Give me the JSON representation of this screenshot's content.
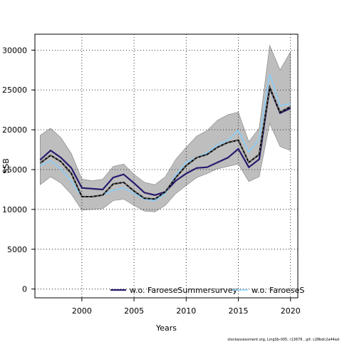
{
  "chart_data": {
    "type": "line",
    "xlabel": "Years",
    "ylabel": "SSB",
    "xlim": [
      1995.5,
      2020.7
    ],
    "ylim": [
      -1100,
      32000
    ],
    "xticks": [
      2000,
      2005,
      2010,
      2015,
      2020
    ],
    "yticks": [
      0,
      5000,
      10000,
      15000,
      20000,
      25000,
      30000
    ],
    "grid": true,
    "legend_position": "bottom",
    "x": [
      1996,
      1997,
      1998,
      1999,
      2000,
      2001,
      2002,
      2003,
      2004,
      2005,
      2006,
      2007,
      2008,
      2009,
      2010,
      2011,
      2012,
      2013,
      2014,
      2015,
      2016,
      2017,
      2018,
      2019,
      2020
    ],
    "band": {
      "upper": [
        19300,
        20200,
        19000,
        17000,
        13800,
        13600,
        13800,
        15400,
        15700,
        14400,
        13400,
        13100,
        14100,
        16300,
        17800,
        19200,
        19900,
        21200,
        21900,
        22200,
        18500,
        20200,
        30600,
        27500,
        29800
      ],
      "lower": [
        13100,
        14100,
        13300,
        11900,
        9900,
        10000,
        10100,
        11100,
        11300,
        10500,
        9800,
        9700,
        10500,
        12000,
        13000,
        14000,
        14500,
        15100,
        15400,
        15700,
        13500,
        14100,
        20800,
        17900,
        17400
      ]
    },
    "base_estimate": [
      15800,
      16800,
      16000,
      14500,
      11600,
      11600,
      11800,
      13200,
      13400,
      12300,
      11400,
      11300,
      12200,
      14000,
      15500,
      16500,
      16900,
      17800,
      18400,
      18700,
      15900,
      16900,
      25300,
      22200,
      22900
    ],
    "series": [
      {
        "name": "w.o. FaroeseSummersurvey",
        "color": "#2a1a6e",
        "values": [
          16200,
          17400,
          16500,
          15200,
          12700,
          12600,
          12500,
          14000,
          14400,
          13300,
          12100,
          11800,
          12200,
          13600,
          14500,
          15200,
          15300,
          15900,
          16500,
          17600,
          15300,
          16300,
          25300,
          22100,
          22700
        ]
      },
      {
        "name": "w.o. FaroeseS",
        "color": "#87cefa",
        "values": [
          15500,
          16100,
          15100,
          13500,
          11600,
          11600,
          11800,
          12400,
          12700,
          12000,
          11300,
          11100,
          12000,
          14300,
          15900,
          16500,
          17100,
          18100,
          18700,
          19900,
          17200,
          18800,
          27000,
          23000,
          23300
        ]
      }
    ]
  },
  "footer": "stockassessment.org, LingSb-005, r13676 , git: c28bdc2a44ad"
}
